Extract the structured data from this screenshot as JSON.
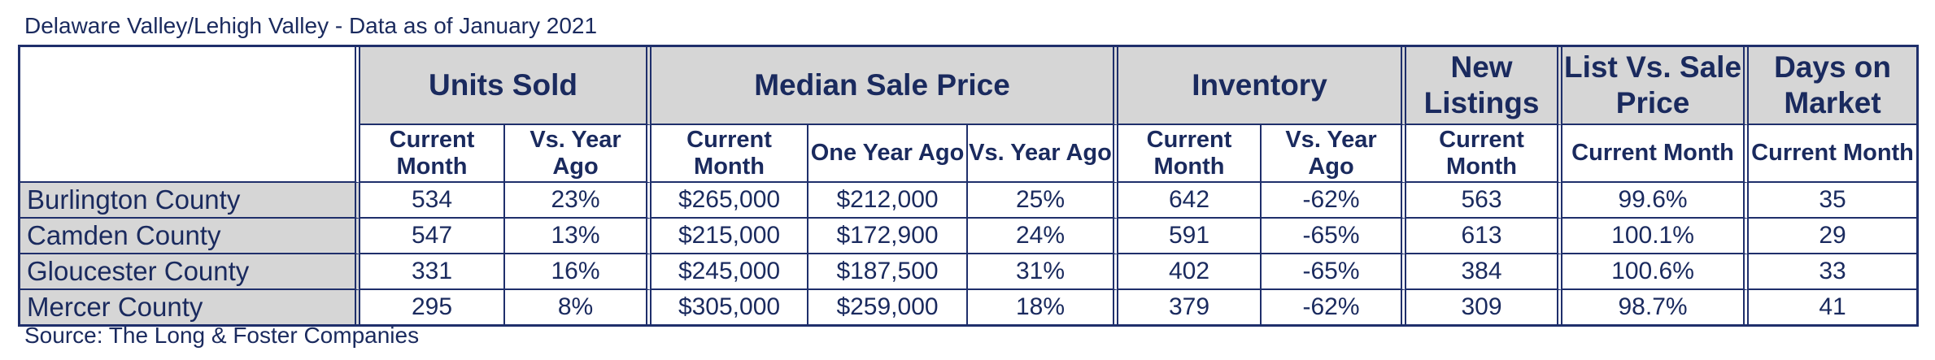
{
  "title": "Delaware Valley/Lehigh Valley - Data as of January 2021",
  "source": "Source: The Long & Foster Companies",
  "groups": {
    "units_sold": "Units Sold",
    "median_sale_price": "Median Sale Price",
    "inventory": "Inventory",
    "new_listings": "New Listings",
    "list_vs_sale": "List Vs. Sale Price",
    "days_on_market": "Days on Market"
  },
  "subheaders": {
    "current_month": "Current Month",
    "vs_year_ago": "Vs. Year Ago",
    "one_year_ago": "One Year Ago"
  },
  "rows": [
    {
      "county": "Burlington County",
      "units_current": "534",
      "units_vs": "23%",
      "price_current": "$265,000",
      "price_one_year": "$212,000",
      "price_vs": "25%",
      "inv_current": "642",
      "inv_vs": "-62%",
      "new_listings": "563",
      "list_vs_sale": "99.6%",
      "days": "35"
    },
    {
      "county": "Camden County",
      "units_current": "547",
      "units_vs": "13%",
      "price_current": "$215,000",
      "price_one_year": "$172,900",
      "price_vs": "24%",
      "inv_current": "591",
      "inv_vs": "-65%",
      "new_listings": "613",
      "list_vs_sale": "100.1%",
      "days": "29"
    },
    {
      "county": "Gloucester County",
      "units_current": "331",
      "units_vs": "16%",
      "price_current": "$245,000",
      "price_one_year": "$187,500",
      "price_vs": "31%",
      "inv_current": "402",
      "inv_vs": "-65%",
      "new_listings": "384",
      "list_vs_sale": "100.6%",
      "days": "33"
    },
    {
      "county": "Mercer County",
      "units_current": "295",
      "units_vs": "8%",
      "price_current": "$305,000",
      "price_one_year": "$259,000",
      "price_vs": "18%",
      "inv_current": "379",
      "inv_vs": "-62%",
      "new_listings": "309",
      "list_vs_sale": "98.7%",
      "days": "41"
    }
  ]
}
